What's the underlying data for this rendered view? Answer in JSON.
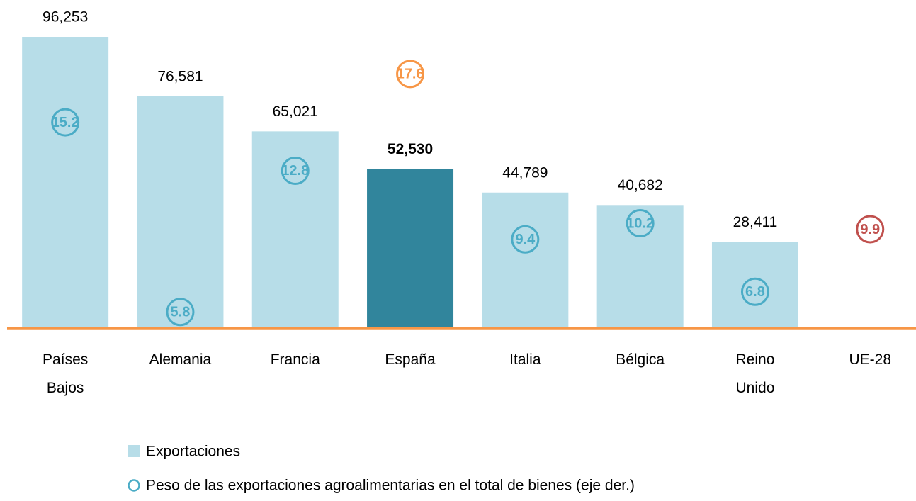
{
  "chart_data": {
    "type": "bar",
    "categories": [
      "Países Bajos",
      "Alemania",
      "Francia",
      "España",
      "Italia",
      "Bélgica",
      "Reino Unido",
      "UE-28"
    ],
    "highlight_category": "España",
    "series": [
      {
        "name": "Exportaciones",
        "type": "bar",
        "color": "#b7dde8",
        "highlight_color": "#31859c",
        "values": [
          96253,
          76581,
          65021,
          52530,
          44789,
          40682,
          28411,
          null
        ],
        "value_labels": [
          "96,253",
          "76,581",
          "65,021",
          "52,530",
          "44,789",
          "40,682",
          "28,411",
          null
        ]
      },
      {
        "name": "Peso de las exportaciones agroalimentarias en el total de bienes (eje der.)",
        "type": "scatter",
        "axis": "y2",
        "color": "#4bacc6",
        "colors": [
          "#4bacc6",
          "#4bacc6",
          "#4bacc6",
          "#f79646",
          "#4bacc6",
          "#4bacc6",
          "#4bacc6",
          "#c0504d"
        ],
        "values": [
          15.2,
          5.8,
          12.8,
          17.6,
          9.4,
          10.2,
          6.8,
          9.9
        ]
      }
    ],
    "ylim": [
      0,
      100000
    ],
    "y2lim": [
      5,
      20
    ],
    "baseline_color": "#f79646",
    "grid": false
  }
}
